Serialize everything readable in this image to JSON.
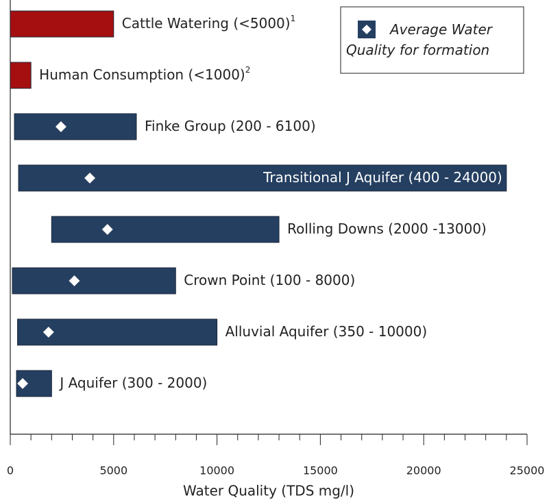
{
  "chart_data": {
    "type": "range_bar",
    "categories": [
      "Cattle Watering (<5000)",
      "Human Consumption (<1000)",
      "Finke Group (200 - 6100)",
      "Transitional J Aquifer (400 - 24000)",
      "Rolling Downs (2000 -13000)",
      "Crown Point (100 - 8000)",
      "Alluvial Aquifer (350 - 10000)",
      "J Aquifer (300 - 2000)"
    ],
    "category_notes": [
      "1",
      "2",
      null,
      null,
      null,
      null,
      null,
      null
    ],
    "low": [
      0,
      0,
      200,
      400,
      2000,
      100,
      350,
      300
    ],
    "high": [
      5000,
      1000,
      6100,
      24000,
      13000,
      8000,
      10000,
      2000
    ],
    "colors": [
      "#a50f10",
      "#a50f10",
      "#253f61",
      "#253f61",
      "#253f61",
      "#253f61",
      "#253f61",
      "#253f61"
    ],
    "average": {
      "name": "Average Water Quality for formation",
      "color": "#ffffff",
      "values": [
        null,
        null,
        2450,
        3850,
        4700,
        3100,
        1850,
        600
      ]
    },
    "x_label": "Water Quality (TDS mg/l)",
    "xlim": [
      0,
      25000
    ],
    "xticks": [
      0,
      5000,
      10000,
      15000,
      20000,
      25000
    ],
    "minor_ticks_per_major": 5,
    "legend_position": "upper right"
  }
}
